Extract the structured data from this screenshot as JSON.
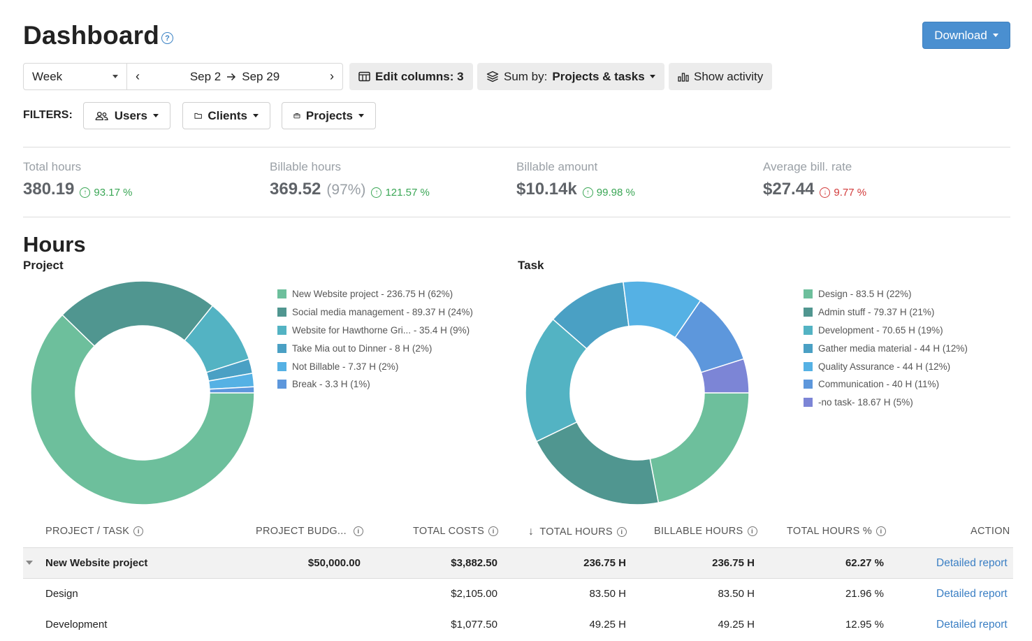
{
  "header": {
    "title": "Dashboard",
    "download_label": "Download"
  },
  "toolbar": {
    "period": "Week",
    "date_from": "Sep 2",
    "date_to": "Sep 29",
    "edit_columns_label": "Edit columns: 3",
    "sum_by_prefix": "Sum by:",
    "sum_by_value": "Projects & tasks",
    "show_activity_label": "Show activity"
  },
  "filters": {
    "label": "FILTERS:",
    "users": "Users",
    "clients": "Clients",
    "projects": "Projects"
  },
  "stats": [
    {
      "label": "Total hours",
      "value": "380.19",
      "extra": "",
      "delta": "93.17 %",
      "direction": "up"
    },
    {
      "label": "Billable hours",
      "value": "369.52",
      "extra": "(97%)",
      "delta": "121.57 %",
      "direction": "up"
    },
    {
      "label": "Billable amount",
      "value": "$10.14k",
      "extra": "",
      "delta": "99.98 %",
      "direction": "up"
    },
    {
      "label": "Average bill. rate",
      "value": "$27.44",
      "extra": "",
      "delta": "9.77 %",
      "direction": "down"
    }
  ],
  "hours": {
    "title": "Hours",
    "project_title": "Project",
    "task_title": "Task"
  },
  "chart_data": [
    {
      "type": "pie",
      "title": "Project",
      "series": [
        {
          "name": "New Website project",
          "value": 236.75,
          "label": "New Website project - 236.75 H (62%)",
          "color": "#6dbf9c"
        },
        {
          "name": "Social media management",
          "value": 89.37,
          "label": "Social media management - 89.37 H (24%)",
          "color": "#509690"
        },
        {
          "name": "Website for Hawthorne Gri...",
          "value": 35.4,
          "label": "Website for Hawthorne Gri... - 35.4 H (9%)",
          "color": "#53b3c3"
        },
        {
          "name": "Take Mia out to Dinner",
          "value": 8,
          "label": "Take Mia out to Dinner - 8 H (2%)",
          "color": "#4aa0c4"
        },
        {
          "name": "Not Billable",
          "value": 7.37,
          "label": "Not Billable - 7.37 H (2%)",
          "color": "#55b1e4"
        },
        {
          "name": "Break",
          "value": 3.3,
          "label": "Break - 3.3 H (1%)",
          "color": "#5d97dc"
        }
      ]
    },
    {
      "type": "pie",
      "title": "Task",
      "series": [
        {
          "name": "Design",
          "value": 83.5,
          "label": "Design - 83.5 H (22%)",
          "color": "#6dbf9c"
        },
        {
          "name": "Admin stuff",
          "value": 79.37,
          "label": "Admin stuff - 79.37 H (21%)",
          "color": "#509690"
        },
        {
          "name": "Development",
          "value": 70.65,
          "label": "Development - 70.65 H (19%)",
          "color": "#53b3c3"
        },
        {
          "name": "Gather media material",
          "value": 44,
          "label": "Gather media material - 44 H (12%)",
          "color": "#4aa0c4"
        },
        {
          "name": "Quality Assurance",
          "value": 44,
          "label": "Quality Assurance - 44 H (12%)",
          "color": "#55b1e4"
        },
        {
          "name": "Communication",
          "value": 40,
          "label": "Communication - 40 H (11%)",
          "color": "#5d97dc"
        },
        {
          "name": "-no task-",
          "value": 18.67,
          "label": "-no task- 18.67 H (5%)",
          "color": "#7c85d6"
        }
      ]
    }
  ],
  "table": {
    "columns": [
      "PROJECT / TASK",
      "PROJECT BUDG...",
      "TOTAL COSTS",
      "TOTAL HOURS",
      "BILLABLE HOURS",
      "TOTAL HOURS %",
      "ACTION"
    ],
    "sort_arrow": "↓",
    "rows": [
      {
        "name": "New Website project",
        "budget": "$50,000.00",
        "costs": "$3,882.50",
        "hours": "236.75 H",
        "billable": "236.75 H",
        "pct": "62.27 %",
        "action": "Detailed report"
      },
      {
        "name": "Design",
        "budget": "",
        "costs": "$2,105.00",
        "hours": "83.50 H",
        "billable": "83.50 H",
        "pct": "21.96 %",
        "action": "Detailed report"
      },
      {
        "name": "Development",
        "budget": "",
        "costs": "$1,077.50",
        "hours": "49.25 H",
        "billable": "49.25 H",
        "pct": "12.95 %",
        "action": "Detailed report"
      }
    ]
  }
}
